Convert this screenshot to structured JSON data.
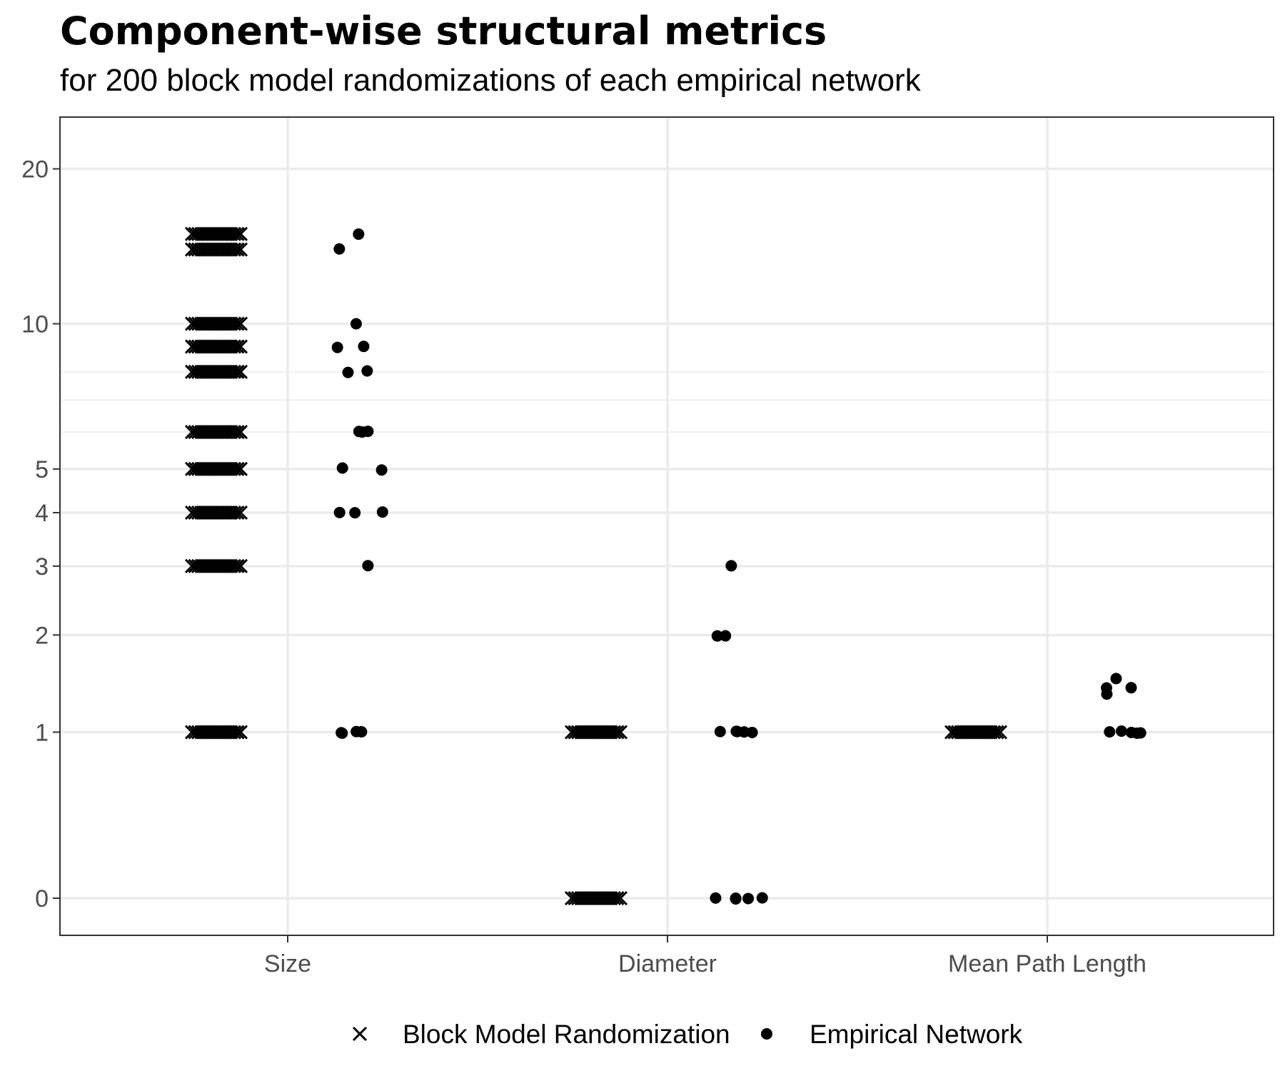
{
  "chart_data": {
    "type": "scatter",
    "title": "Component-wise structural metrics",
    "subtitle": "for 200 block model randomizations of each empirical network",
    "xlabel": "",
    "ylabel": "",
    "categories": [
      "Size",
      "Diameter",
      "Mean Path Length"
    ],
    "y_scale": "pseudo-log (log(y+1))",
    "y_ticks": [
      0,
      1,
      2,
      3,
      4,
      5,
      10,
      20
    ],
    "y_minor_gridlines": [
      8,
      7,
      6
    ],
    "ylim": [
      0,
      20
    ],
    "grid": true,
    "legend_position": "bottom",
    "series": [
      {
        "name": "Block Model Randomization",
        "marker": "cross",
        "points": [
          {
            "category": "Size",
            "values": [
              15,
              14,
              10,
              9,
              8,
              6,
              5,
              4,
              3,
              1
            ]
          },
          {
            "category": "Diameter",
            "values": [
              1,
              0
            ]
          },
          {
            "category": "Mean Path Length",
            "values": [
              1
            ]
          }
        ]
      },
      {
        "name": "Empirical Network",
        "marker": "dot",
        "points": [
          {
            "category": "Size",
            "values": [
              15,
              14,
              10,
              9,
              9,
              8,
              8,
              6,
              6,
              6,
              5,
              5,
              4,
              4,
              4,
              3,
              1,
              1,
              1,
              1
            ]
          },
          {
            "category": "Diameter",
            "values": [
              3,
              2,
              2,
              1,
              1,
              1,
              1,
              1,
              0,
              0,
              0,
              0,
              0
            ]
          },
          {
            "category": "Mean Path Length",
            "values": [
              1.5,
              1.4,
              1.4,
              1.35,
              1,
              1,
              1,
              1,
              1
            ]
          }
        ]
      }
    ]
  }
}
